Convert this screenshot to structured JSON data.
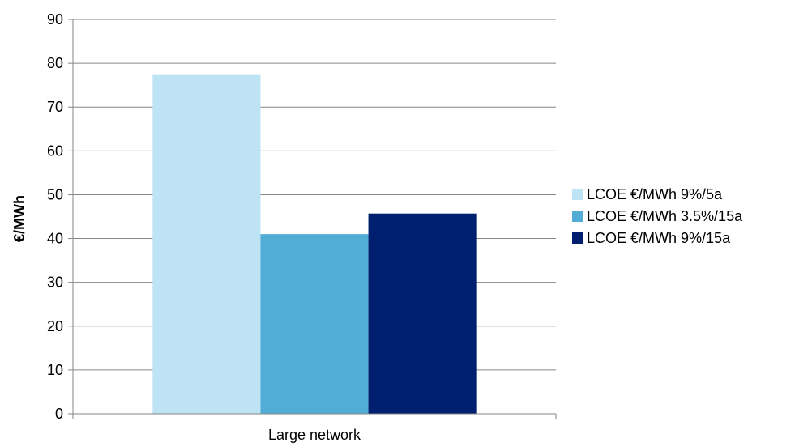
{
  "chart_data": {
    "type": "bar",
    "title": "",
    "xlabel": "",
    "ylabel": "€/MWh",
    "ylim": [
      0,
      90
    ],
    "yticks": [
      0,
      10,
      20,
      30,
      40,
      50,
      60,
      70,
      80,
      90
    ],
    "categories": [
      "Large network"
    ],
    "grid": "horizontal",
    "legend_position": "right",
    "series": [
      {
        "name": "LCOE €/MWh 9%/5a",
        "values": [
          77.5
        ],
        "color": "#bde3f5"
      },
      {
        "name": "LCOE €/MWh 3.5%/15a",
        "values": [
          41
        ],
        "color": "#52add6"
      },
      {
        "name": "LCOE €/MWh 9%/15a",
        "values": [
          45.7
        ],
        "color": "#001f6e"
      }
    ]
  }
}
